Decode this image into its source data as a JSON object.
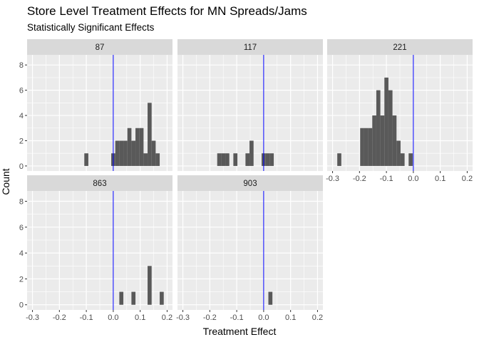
{
  "chart_data": {
    "type": "bar",
    "title": "Store Level Treatment Effects for MN Spreads/Jams",
    "subtitle": "Statistically Significant Effects",
    "xlabel": "Treatment Effect",
    "ylabel": "Count",
    "xlim": [
      -0.32,
      0.22
    ],
    "ylim": [
      -0.4,
      8.8
    ],
    "x_ticks": [
      "-0.3",
      "-0.2",
      "-0.1",
      "0.0",
      "0.1",
      "0.2"
    ],
    "y_ticks": [
      "0",
      "2",
      "4",
      "6",
      "8"
    ],
    "bin_width": 0.015,
    "reference_line": {
      "x": 0,
      "color": "#0000ff"
    },
    "bar_color": "#595959",
    "panel_background": "#ebebeb",
    "strip_background": "#d9d9d9",
    "grid_color": "#ffffff",
    "panels": [
      {
        "name": "87",
        "bins": [
          {
            "x": -0.1,
            "count": 1
          },
          {
            "x": 0.0,
            "count": 1
          },
          {
            "x": 0.015,
            "count": 2
          },
          {
            "x": 0.03,
            "count": 2
          },
          {
            "x": 0.045,
            "count": 2
          },
          {
            "x": 0.06,
            "count": 3
          },
          {
            "x": 0.075,
            "count": 2
          },
          {
            "x": 0.09,
            "count": 3
          },
          {
            "x": 0.105,
            "count": 3
          },
          {
            "x": 0.12,
            "count": 1
          },
          {
            "x": 0.135,
            "count": 5
          },
          {
            "x": 0.15,
            "count": 2
          },
          {
            "x": 0.165,
            "count": 1
          }
        ]
      },
      {
        "name": "117",
        "bins": [
          {
            "x": -0.165,
            "count": 1
          },
          {
            "x": -0.15,
            "count": 1
          },
          {
            "x": -0.135,
            "count": 1
          },
          {
            "x": -0.105,
            "count": 1
          },
          {
            "x": -0.06,
            "count": 1
          },
          {
            "x": -0.045,
            "count": 2
          },
          {
            "x": 0.0,
            "count": 1
          },
          {
            "x": 0.015,
            "count": 1
          },
          {
            "x": 0.03,
            "count": 1
          }
        ]
      },
      {
        "name": "221",
        "bins": [
          {
            "x": -0.275,
            "count": 1
          },
          {
            "x": -0.19,
            "count": 3
          },
          {
            "x": -0.175,
            "count": 3
          },
          {
            "x": -0.16,
            "count": 3
          },
          {
            "x": -0.145,
            "count": 4
          },
          {
            "x": -0.13,
            "count": 6
          },
          {
            "x": -0.115,
            "count": 4
          },
          {
            "x": -0.1,
            "count": 7
          },
          {
            "x": -0.085,
            "count": 6
          },
          {
            "x": -0.07,
            "count": 4
          },
          {
            "x": -0.055,
            "count": 2
          },
          {
            "x": -0.04,
            "count": 1
          },
          {
            "x": -0.01,
            "count": 1
          }
        ]
      },
      {
        "name": "863",
        "bins": [
          {
            "x": 0.03,
            "count": 1
          },
          {
            "x": 0.075,
            "count": 1
          },
          {
            "x": 0.135,
            "count": 3
          },
          {
            "x": 0.18,
            "count": 1
          }
        ]
      },
      {
        "name": "903",
        "bins": [
          {
            "x": 0.025,
            "count": 1
          }
        ]
      }
    ]
  }
}
